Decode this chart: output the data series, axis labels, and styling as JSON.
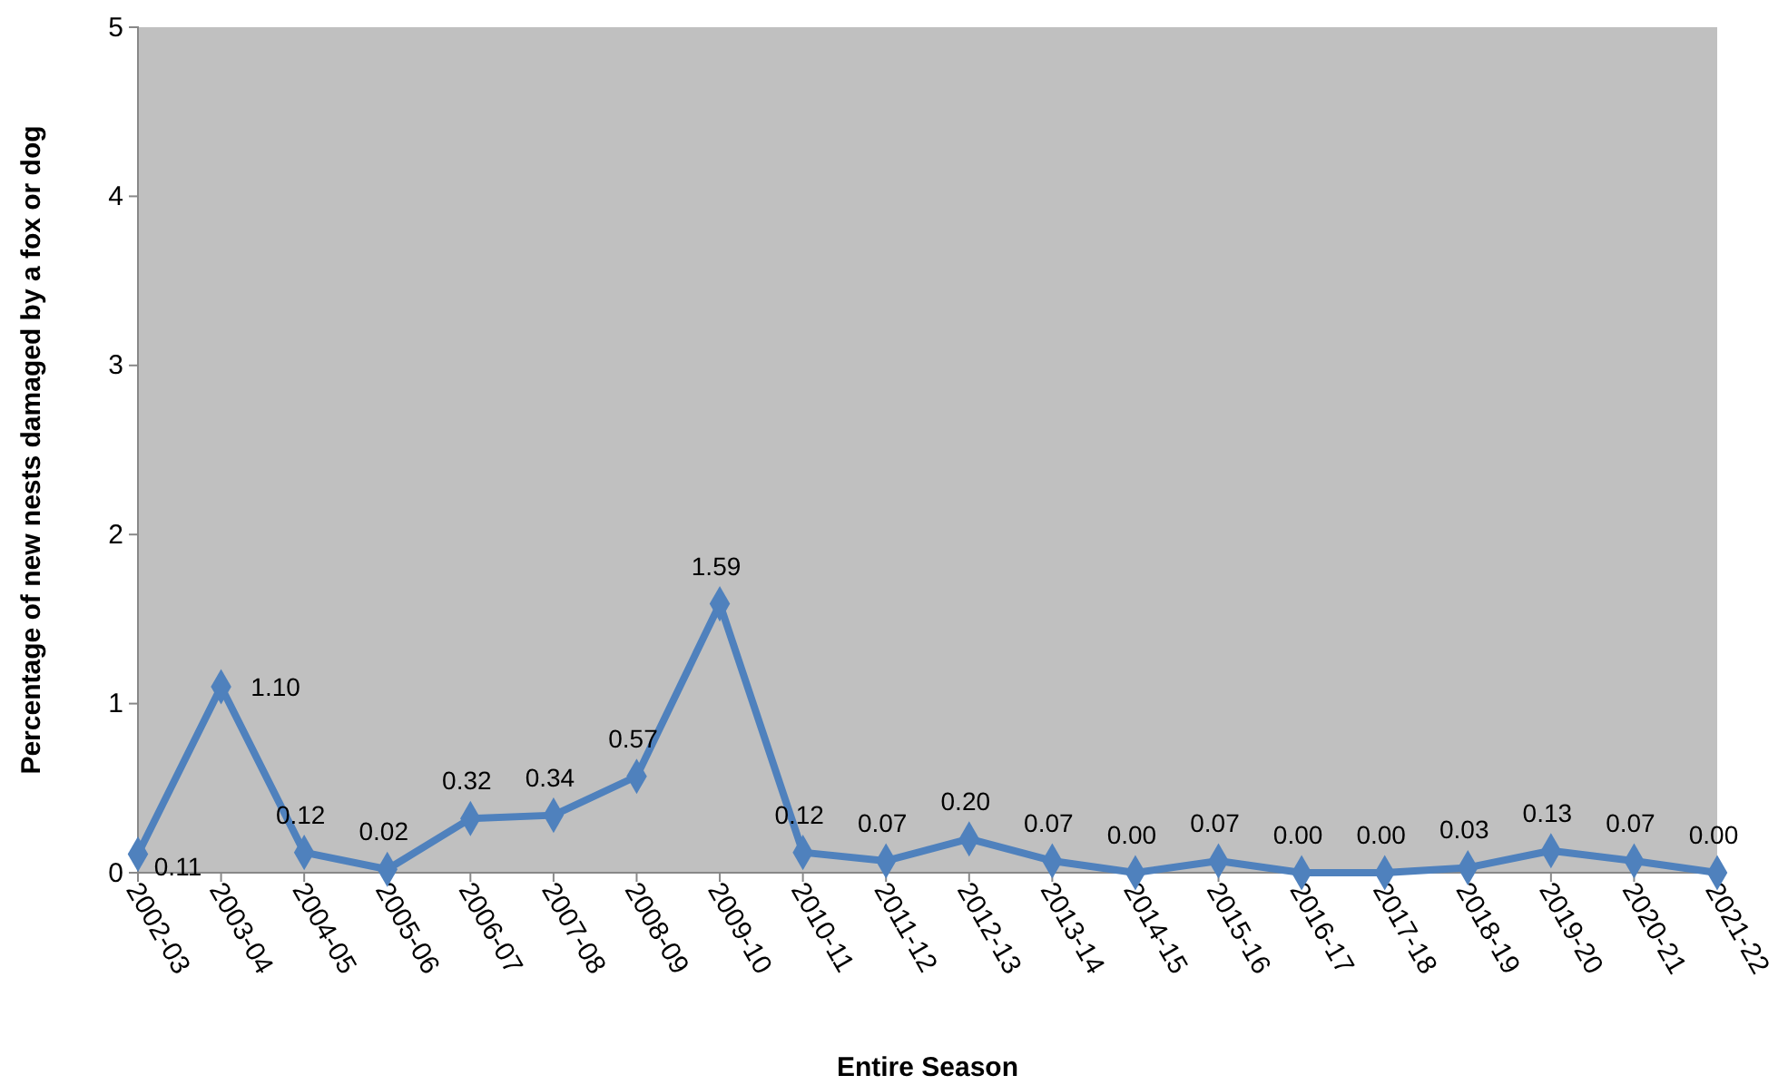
{
  "chart_data": {
    "type": "line",
    "xlabel": "Entire Season",
    "ylabel": "Percentage of new nests damaged by a fox or dog",
    "categories": [
      "2002-03",
      "2003-04",
      "2004-05",
      "2005-06",
      "2006-07",
      "2007-08",
      "2008-09",
      "2009-10",
      "2010-11",
      "2011-12",
      "2012-13",
      "2013-14",
      "2014-15",
      "2015-16",
      "2016-17",
      "2017-18",
      "2018-19",
      "2019-20",
      "2020-21",
      "2021-22"
    ],
    "series": [
      {
        "color": "#4f81bd",
        "values": [
          0.11,
          1.1,
          0.12,
          0.02,
          0.32,
          0.34,
          0.57,
          1.59,
          0.12,
          0.07,
          0.2,
          0.07,
          0.0,
          0.07,
          0.0,
          0.0,
          0.03,
          0.13,
          0.07,
          0.0
        ],
        "value_labels": [
          "0.11",
          "1.10",
          "0.12",
          "0.02",
          "0.32",
          "0.34",
          "0.57",
          "1.59",
          "0.12",
          "0.07",
          "0.20",
          "0.07",
          "0.00",
          "0.07",
          "0.00",
          "0.00",
          "0.03",
          "0.13",
          "0.07",
          "0.00"
        ]
      }
    ],
    "ylim": [
      0,
      5
    ],
    "yticks": [
      0,
      1,
      2,
      3,
      4,
      5
    ],
    "marker": "diamond",
    "line_style": "solid"
  }
}
